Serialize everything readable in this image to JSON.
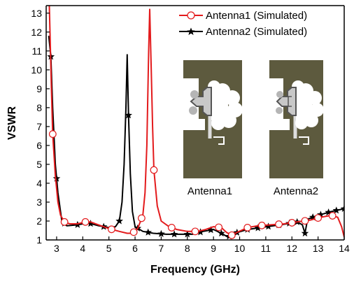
{
  "chart_data": {
    "type": "line",
    "xlabel": "Frequency (GHz)",
    "ylabel": "VSWR",
    "xlim": [
      2.6,
      14
    ],
    "ylim": [
      1,
      13.4
    ],
    "x_ticks": [
      "3",
      "4",
      "5",
      "6",
      "7",
      "8",
      "9",
      "10",
      "11",
      "12",
      "13",
      "14"
    ],
    "y_ticks": [
      "1",
      "2",
      "3",
      "4",
      "5",
      "6",
      "7",
      "8",
      "9",
      "10",
      "11",
      "12",
      "13"
    ],
    "grid": false,
    "legend_position": "top-right",
    "series": [
      {
        "name": "Antenna1 (Simulated)",
        "color": "#e31a1c",
        "marker": "open-circle",
        "points": [
          [
            2.72,
            13.4
          ],
          [
            2.8,
            9.0
          ],
          [
            2.85,
            6.6
          ],
          [
            2.95,
            4.4
          ],
          [
            3.05,
            3.0
          ],
          [
            3.15,
            2.3
          ],
          [
            3.3,
            1.95
          ],
          [
            3.5,
            1.85
          ],
          [
            3.8,
            1.85
          ],
          [
            4.1,
            1.95
          ],
          [
            4.3,
            1.95
          ],
          [
            4.6,
            1.8
          ],
          [
            5.0,
            1.6
          ],
          [
            5.4,
            1.45
          ],
          [
            5.7,
            1.35
          ],
          [
            5.9,
            1.35
          ],
          [
            6.1,
            1.6
          ],
          [
            6.2,
            1.95
          ],
          [
            6.3,
            2.35
          ],
          [
            6.38,
            3.5
          ],
          [
            6.45,
            6.0
          ],
          [
            6.52,
            11.0
          ],
          [
            6.56,
            13.2
          ],
          [
            6.62,
            10.0
          ],
          [
            6.67,
            7.0
          ],
          [
            6.72,
            4.7
          ],
          [
            6.85,
            2.8
          ],
          [
            7.0,
            2.0
          ],
          [
            7.3,
            1.7
          ],
          [
            7.6,
            1.55
          ],
          [
            8.0,
            1.45
          ],
          [
            8.4,
            1.45
          ],
          [
            8.7,
            1.55
          ],
          [
            9.0,
            1.7
          ],
          [
            9.3,
            1.65
          ],
          [
            9.5,
            1.4
          ],
          [
            9.7,
            1.25
          ],
          [
            9.9,
            1.4
          ],
          [
            10.3,
            1.65
          ],
          [
            10.7,
            1.75
          ],
          [
            11.2,
            1.8
          ],
          [
            11.7,
            1.85
          ],
          [
            12.2,
            1.95
          ],
          [
            12.7,
            2.05
          ],
          [
            13.1,
            2.2
          ],
          [
            13.5,
            2.3
          ],
          [
            13.75,
            2.2
          ],
          [
            13.9,
            1.7
          ],
          [
            14.0,
            1.15
          ]
        ],
        "marker_x": [
          2.85,
          3.3,
          4.1,
          5.1,
          5.95,
          6.25,
          6.72,
          7.4,
          8.3,
          9.2,
          9.7,
          10.3,
          10.85,
          11.5,
          12.0,
          12.5,
          13.0,
          13.55
        ]
      },
      {
        "name": "Antenna2 (Simulated)",
        "color": "#000000",
        "marker": "filled-star",
        "points": [
          [
            2.7,
            11.8
          ],
          [
            2.78,
            10.7
          ],
          [
            2.85,
            8.0
          ],
          [
            2.95,
            5.0
          ],
          [
            3.05,
            3.5
          ],
          [
            3.2,
            2.0
          ],
          [
            3.4,
            1.75
          ],
          [
            3.8,
            1.8
          ],
          [
            4.2,
            1.9
          ],
          [
            4.6,
            1.75
          ],
          [
            5.0,
            1.65
          ],
          [
            5.25,
            1.7
          ],
          [
            5.4,
            2.0
          ],
          [
            5.5,
            3.0
          ],
          [
            5.58,
            5.0
          ],
          [
            5.65,
            8.0
          ],
          [
            5.7,
            10.8
          ],
          [
            5.75,
            7.6
          ],
          [
            5.82,
            4.5
          ],
          [
            5.9,
            2.5
          ],
          [
            6.0,
            1.7
          ],
          [
            6.3,
            1.45
          ],
          [
            6.7,
            1.35
          ],
          [
            7.2,
            1.3
          ],
          [
            7.7,
            1.3
          ],
          [
            8.2,
            1.3
          ],
          [
            8.6,
            1.45
          ],
          [
            9.0,
            1.55
          ],
          [
            9.3,
            1.35
          ],
          [
            9.55,
            1.15
          ],
          [
            9.8,
            1.35
          ],
          [
            10.3,
            1.55
          ],
          [
            10.8,
            1.65
          ],
          [
            11.3,
            1.75
          ],
          [
            11.8,
            1.85
          ],
          [
            12.2,
            1.95
          ],
          [
            12.4,
            1.8
          ],
          [
            12.5,
            1.35
          ],
          [
            12.6,
            2.1
          ],
          [
            13.0,
            2.3
          ],
          [
            13.5,
            2.5
          ],
          [
            14.0,
            2.65
          ]
        ],
        "marker_x": [
          2.78,
          3.0,
          3.3,
          3.8,
          4.3,
          4.8,
          5.4,
          5.75,
          6.1,
          6.5,
          7.0,
          7.5,
          8.0,
          8.5,
          8.9,
          9.3,
          9.6,
          9.9,
          10.3,
          10.7,
          11.1,
          11.5,
          11.9,
          12.2,
          12.5,
          12.8,
          13.1,
          13.4,
          13.7,
          14.0
        ]
      }
    ],
    "insets": [
      {
        "label": "Antenna1"
      },
      {
        "label": "Antenna2"
      }
    ]
  },
  "colors": {
    "substrate": "#5d5a3e",
    "patch_outline": "#555555",
    "patch_fill": "#c8c8c8",
    "background": "#ffffff"
  }
}
